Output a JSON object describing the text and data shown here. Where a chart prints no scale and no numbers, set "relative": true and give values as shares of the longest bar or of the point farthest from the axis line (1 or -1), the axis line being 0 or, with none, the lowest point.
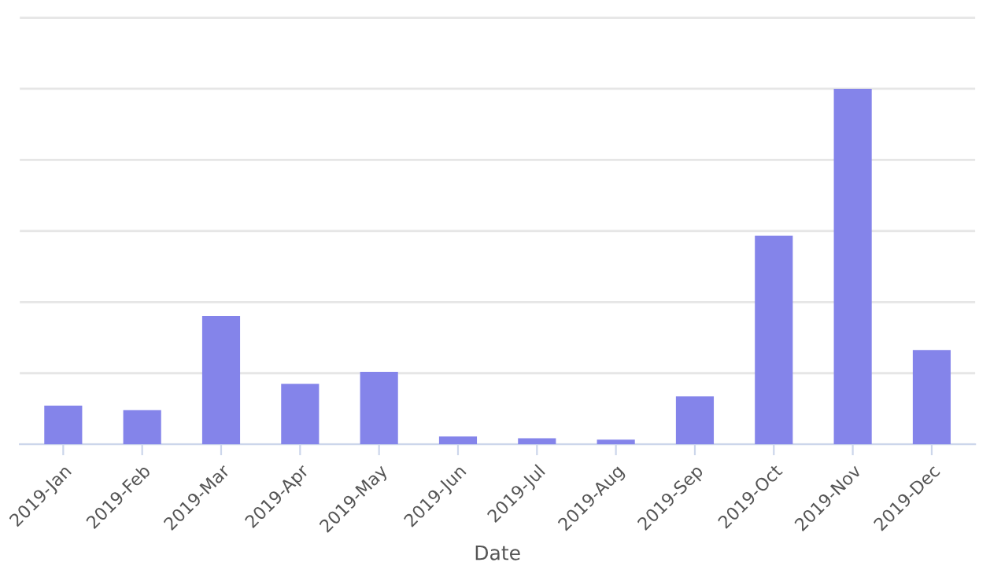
{
  "chart_data": {
    "type": "bar",
    "xlabel": "Date",
    "categories": [
      "2019-Jan",
      "2019-Feb",
      "2019-Mar",
      "2019-Apr",
      "2019-May",
      "2019-Jun",
      "2019-Jul",
      "2019-Aug",
      "2019-Sep",
      "2019-Oct",
      "2019-Nov",
      "2019-Dec"
    ],
    "values": [
      0.109,
      0.096,
      0.361,
      0.17,
      0.204,
      0.022,
      0.017,
      0.013,
      0.135,
      0.587,
      1,
      0.265
    ],
    "color": "#8484ea",
    "relative": true,
    "grid": "y",
    "tick_labels": "x",
    "legend": false
  }
}
